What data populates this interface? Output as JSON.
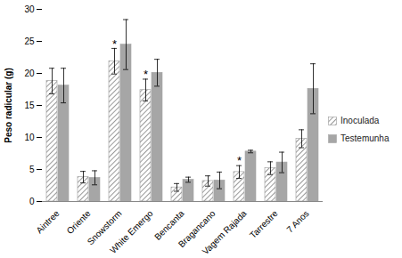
{
  "chart_data": {
    "type": "bar",
    "y_label": "Peso radicular (g)",
    "categories": [
      "Aintree",
      "Oriente",
      "Snowstorm",
      "White Emergo",
      "Bencanta",
      "Bragancano",
      "Vagem Rajada",
      "Tarrestre",
      "7 Anos"
    ],
    "series": [
      {
        "name": "Inoculada",
        "color": "#9a9a9a",
        "values": [
          18.8,
          3.8,
          21.9,
          17.4,
          2.2,
          3.2,
          4.6,
          5.2,
          9.8
        ],
        "errors": [
          2.0,
          0.9,
          2.0,
          1.7,
          0.6,
          0.8,
          1.0,
          1.0,
          1.4
        ]
      },
      {
        "name": "Testemunha",
        "color": "#a6a6a6",
        "values": [
          18.1,
          3.7,
          24.5,
          20.1,
          3.4,
          3.3,
          7.8,
          6.1,
          17.6
        ],
        "errors": [
          2.7,
          1.1,
          3.9,
          2.1,
          0.4,
          1.3,
          0.2,
          1.6,
          3.9
        ]
      }
    ],
    "annotations": [
      {
        "category": "Snowstorm",
        "series": "Inoculada",
        "text": "*"
      },
      {
        "category": "White Emergo",
        "series": "Inoculada",
        "text": "*"
      },
      {
        "category": "Vagem Rajada",
        "series": "Inoculada",
        "text": "*"
      }
    ],
    "ylim": [
      0,
      30
    ],
    "yticks": [
      0,
      5,
      10,
      15,
      20,
      25,
      30
    ],
    "grid": false,
    "legend": "right"
  }
}
